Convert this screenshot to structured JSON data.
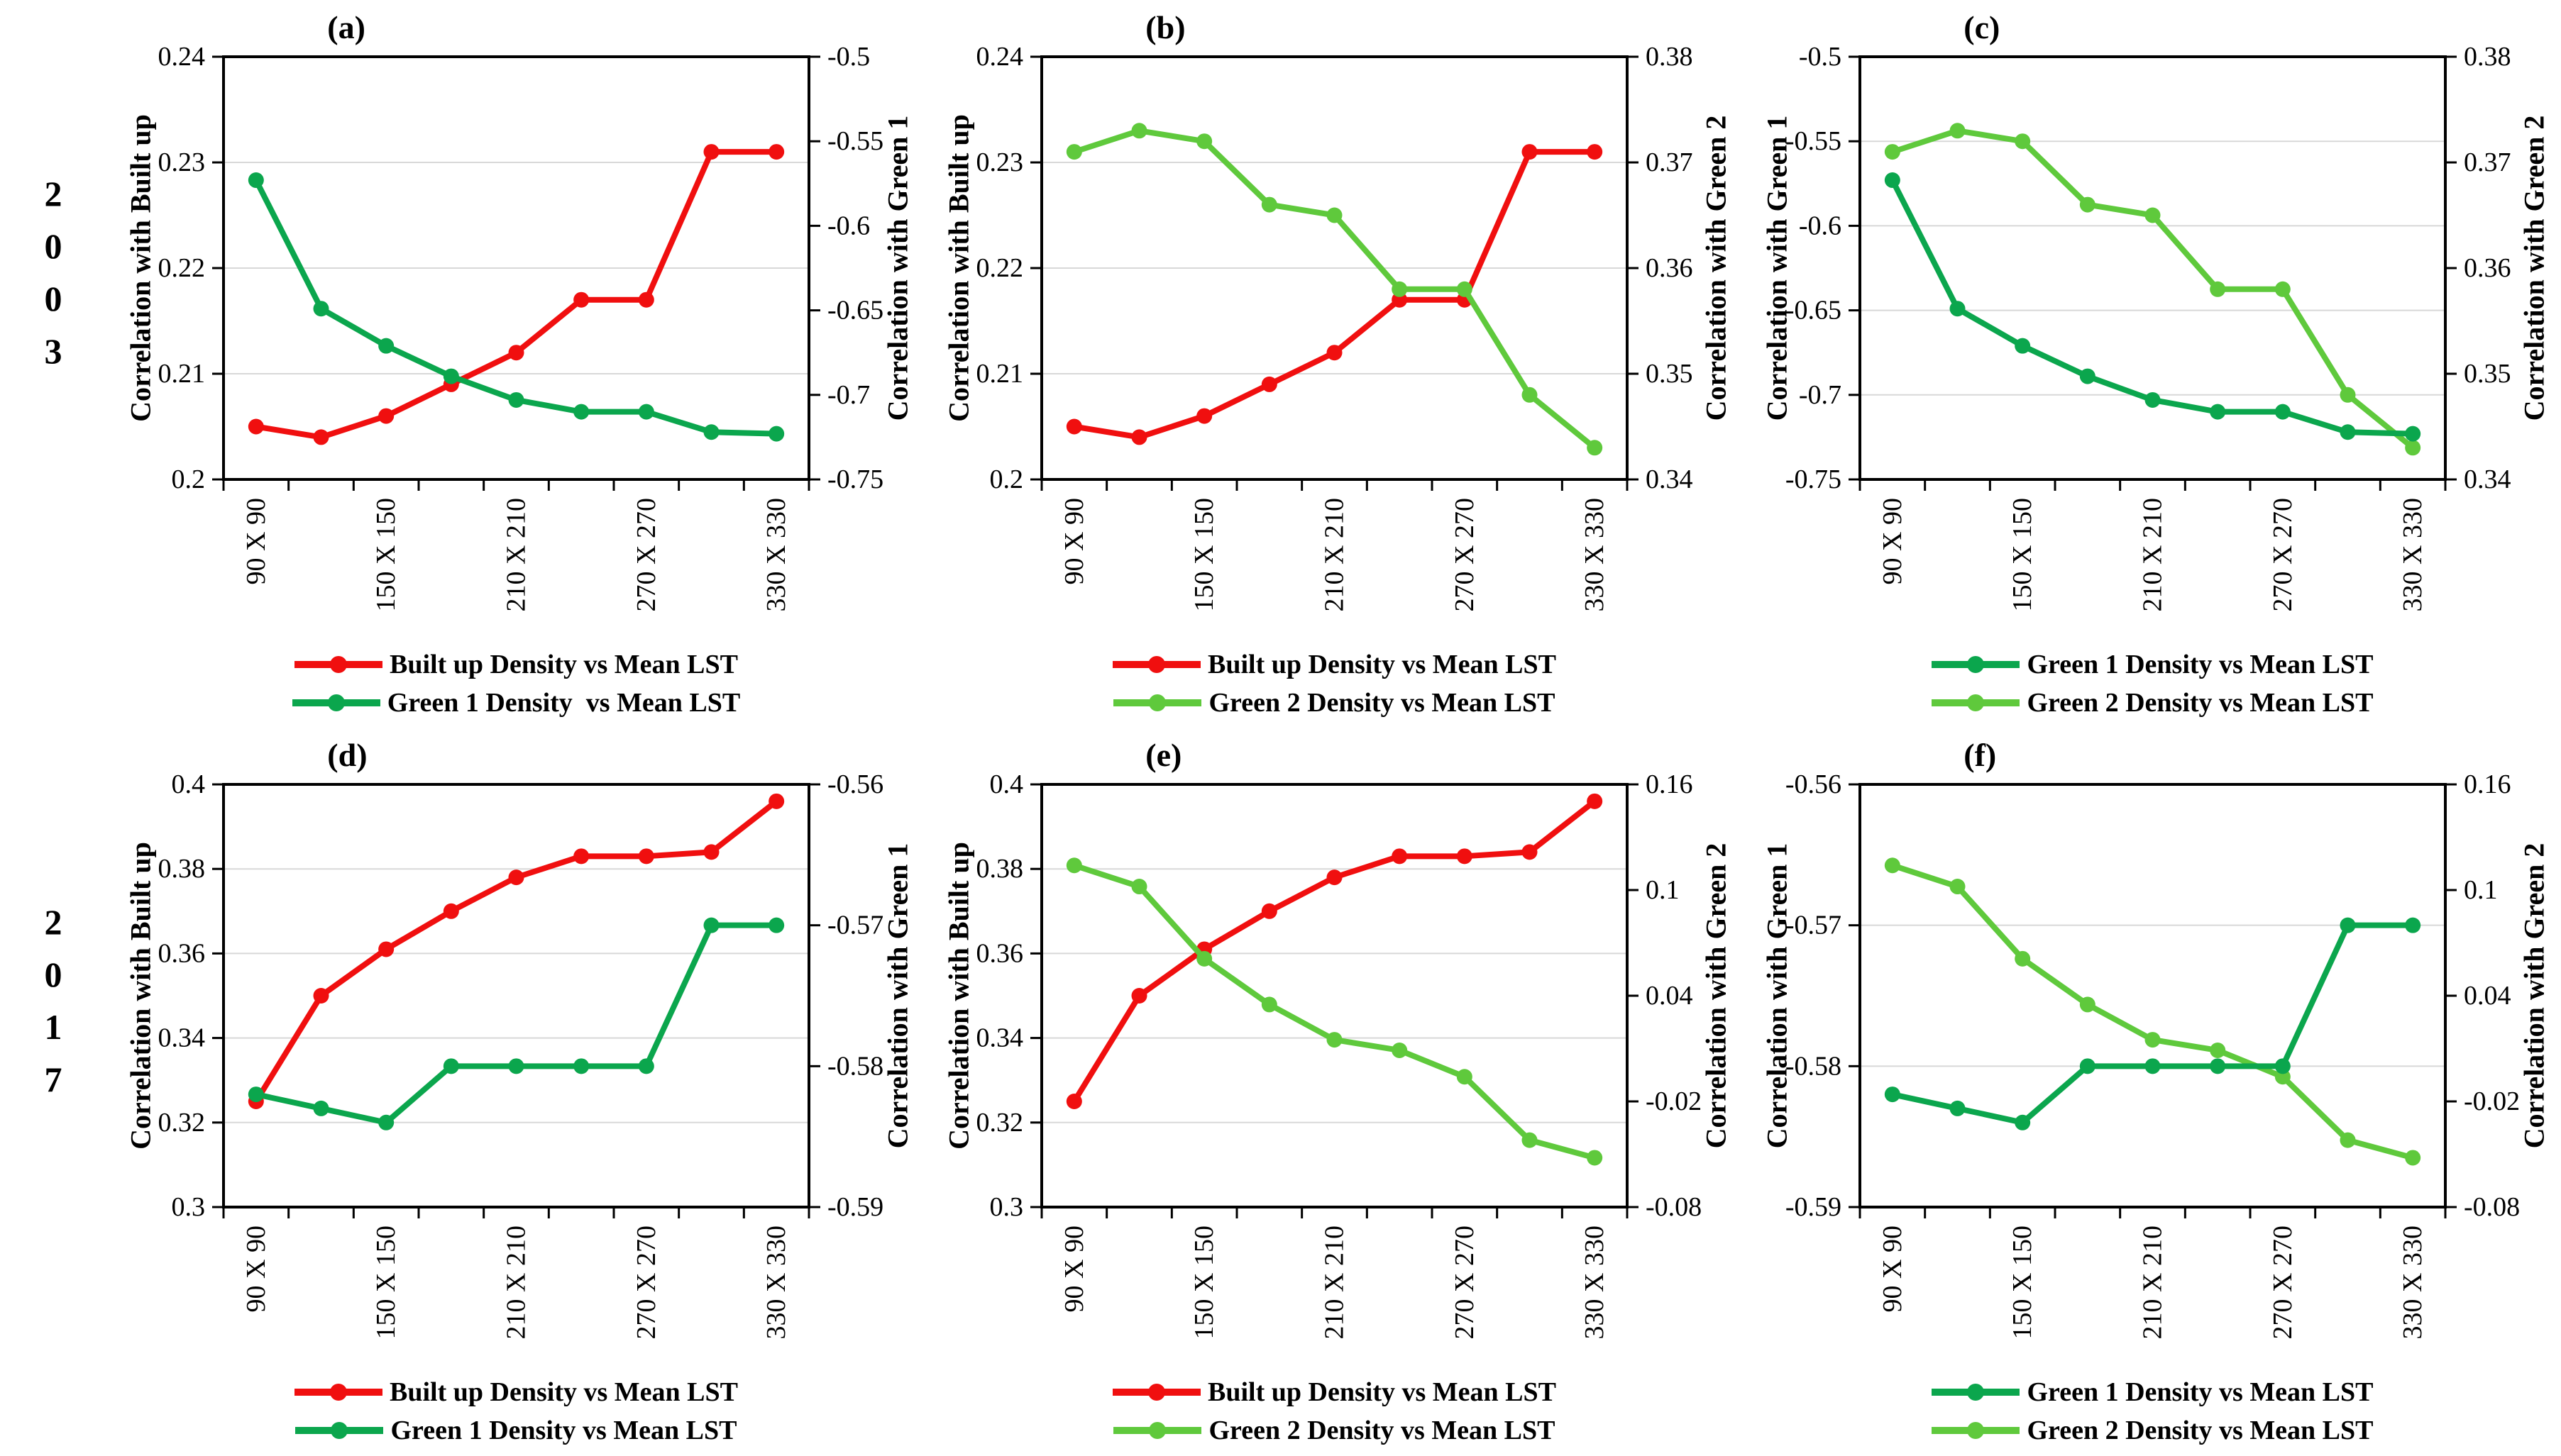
{
  "rows": [
    {
      "year": "2003",
      "panels": [
        "a",
        "b",
        "c"
      ]
    },
    {
      "year": "2017",
      "panels": [
        "d",
        "e",
        "f"
      ]
    }
  ],
  "colors": {
    "red": "#F00F0F",
    "green1": "#0BA64D",
    "green2": "#5FC93C",
    "grid": "#D8D8D8",
    "axis": "#000000"
  },
  "chart_data": [
    {
      "id": "a",
      "title": "(a)",
      "type": "line",
      "grid": true,
      "legend_position": "bottom",
      "x_tick_labels": [
        "90 X 90",
        "",
        "150 X 150",
        "",
        "210 X 210",
        "",
        "270 X 270",
        "",
        "330 X 330"
      ],
      "left_axis": {
        "title": "Correlation with Built up",
        "min": 0.2,
        "max": 0.24,
        "ticks": [
          "0.24",
          "0.23",
          "0.22",
          "0.21",
          "0.2"
        ]
      },
      "right_axis": {
        "title": "Correlation with Green 1",
        "min": -0.75,
        "max": -0.5,
        "ticks": [
          "-0.5",
          "-0.55",
          "-0.6",
          "-0.65",
          "-0.7",
          "-0.75"
        ]
      },
      "series": [
        {
          "name": "Built up Density vs Mean LST",
          "color": "red",
          "axis": "left",
          "values": [
            0.205,
            0.204,
            0.206,
            0.209,
            0.212,
            0.217,
            0.217,
            0.231,
            0.231
          ]
        },
        {
          "name": "Green 1 Density  vs Mean LST",
          "color": "green1",
          "axis": "right",
          "values": [
            -0.573,
            -0.649,
            -0.671,
            -0.689,
            -0.703,
            -0.71,
            -0.71,
            -0.722,
            -0.723
          ]
        }
      ],
      "legend": [
        {
          "color": "red",
          "label": "Built up Density vs Mean LST"
        },
        {
          "color": "green1",
          "label": "Green 1 Density  vs Mean LST"
        }
      ]
    },
    {
      "id": "b",
      "title": "(b)",
      "type": "line",
      "grid": true,
      "legend_position": "bottom",
      "x_tick_labels": [
        "90 X 90",
        "",
        "150 X 150",
        "",
        "210 X 210",
        "",
        "270 X 270",
        "",
        "330 X 330"
      ],
      "left_axis": {
        "title": "Correlation with Built up",
        "min": 0.2,
        "max": 0.24,
        "ticks": [
          "0.24",
          "0.23",
          "0.22",
          "0.21",
          "0.2"
        ]
      },
      "right_axis": {
        "title": "Correlation with Green 2",
        "min": 0.34,
        "max": 0.38,
        "ticks": [
          "0.38",
          "0.37",
          "0.36",
          "0.35",
          "0.34"
        ]
      },
      "series": [
        {
          "name": "Built up Density vs Mean LST",
          "color": "red",
          "axis": "left",
          "values": [
            0.205,
            0.204,
            0.206,
            0.209,
            0.212,
            0.217,
            0.217,
            0.231,
            0.231
          ]
        },
        {
          "name": "Green 2 Density vs Mean LST",
          "color": "green2",
          "axis": "right",
          "values": [
            0.371,
            0.373,
            0.372,
            0.366,
            0.365,
            0.358,
            0.358,
            0.348,
            0.343
          ]
        }
      ],
      "legend": [
        {
          "color": "red",
          "label": "Built up Density vs Mean LST"
        },
        {
          "color": "green2",
          "label": "Green 2 Density vs Mean LST"
        }
      ]
    },
    {
      "id": "c",
      "title": "(c)",
      "type": "line",
      "grid": true,
      "legend_position": "bottom",
      "x_tick_labels": [
        "90 X 90",
        "",
        "150 X 150",
        "",
        "210 X 210",
        "",
        "270 X 270",
        "",
        "330 X 330"
      ],
      "left_axis": {
        "title": "Correlation with Green 1",
        "min": -0.75,
        "max": -0.5,
        "ticks": [
          "-0.5",
          "-0.55",
          "-0.6",
          "-0.65",
          "-0.7",
          "-0.75"
        ]
      },
      "right_axis": {
        "title": "Correlation with Green 2",
        "min": 0.34,
        "max": 0.38,
        "ticks": [
          "0.38",
          "0.37",
          "0.36",
          "0.35",
          "0.34"
        ]
      },
      "series": [
        {
          "name": "Green 2 Density vs Mean LST",
          "color": "green2",
          "axis": "right",
          "values": [
            0.371,
            0.373,
            0.372,
            0.366,
            0.365,
            0.358,
            0.358,
            0.348,
            0.343
          ]
        },
        {
          "name": "Green 1 Density vs Mean LST",
          "color": "green1",
          "axis": "left",
          "values": [
            -0.573,
            -0.649,
            -0.671,
            -0.689,
            -0.703,
            -0.71,
            -0.71,
            -0.722,
            -0.723
          ]
        }
      ],
      "legend": [
        {
          "color": "green1",
          "label": "Green 1 Density vs Mean LST"
        },
        {
          "color": "green2",
          "label": "Green 2 Density vs Mean LST"
        }
      ]
    },
    {
      "id": "d",
      "title": "(d)",
      "type": "line",
      "grid": true,
      "legend_position": "bottom",
      "x_tick_labels": [
        "90 X 90",
        "",
        "150 X 150",
        "",
        "210 X 210",
        "",
        "270 X 270",
        "",
        "330 X 330"
      ],
      "left_axis": {
        "title": "Correlation with Built up",
        "min": 0.3,
        "max": 0.4,
        "ticks": [
          "0.4",
          "0.38",
          "0.36",
          "0.34",
          "0.32",
          "0.3"
        ]
      },
      "right_axis": {
        "title": "Correlation with Green 1",
        "min": -0.59,
        "max": -0.56,
        "ticks": [
          "-0.56",
          "-0.57",
          "-0.58",
          "-0.59"
        ]
      },
      "series": [
        {
          "name": "Built up Density vs Mean LST",
          "color": "red",
          "axis": "left",
          "values": [
            0.325,
            0.35,
            0.361,
            0.37,
            0.378,
            0.383,
            0.383,
            0.384,
            0.396
          ]
        },
        {
          "name": "Green 1 Density vs Mean LST",
          "color": "green1",
          "axis": "right",
          "values": [
            -0.582,
            -0.583,
            -0.584,
            -0.58,
            -0.58,
            -0.58,
            -0.58,
            -0.57,
            -0.57
          ]
        }
      ],
      "legend": [
        {
          "color": "red",
          "label": "Built up Density vs Mean LST"
        },
        {
          "color": "green1",
          "label": "Green 1 Density vs Mean LST"
        }
      ]
    },
    {
      "id": "e",
      "title": "(e)",
      "type": "line",
      "grid": true,
      "legend_position": "bottom",
      "x_tick_labels": [
        "90 X 90",
        "",
        "150 X 150",
        "",
        "210 X 210",
        "",
        "270 X 270",
        "",
        "330 X 330"
      ],
      "left_axis": {
        "title": "Correlation with Built up",
        "min": 0.3,
        "max": 0.4,
        "ticks": [
          "0.4",
          "0.38",
          "0.36",
          "0.34",
          "0.32",
          "0.3"
        ]
      },
      "right_axis": {
        "title": "Correlation with Green 2",
        "min": -0.08,
        "max": 0.16,
        "ticks": [
          "0.16",
          "0.1",
          "0.04",
          "-0.02",
          "-0.08"
        ]
      },
      "series": [
        {
          "name": "Built up Density vs Mean LST",
          "color": "red",
          "axis": "left",
          "values": [
            0.325,
            0.35,
            0.361,
            0.37,
            0.378,
            0.383,
            0.383,
            0.384,
            0.396
          ]
        },
        {
          "name": "Green 2 Density vs Mean LST",
          "color": "green2",
          "axis": "right",
          "values": [
            0.114,
            0.102,
            0.061,
            0.035,
            0.015,
            0.009,
            -0.006,
            -0.042,
            -0.052
          ]
        }
      ],
      "legend": [
        {
          "color": "red",
          "label": "Built up Density vs Mean LST"
        },
        {
          "color": "green2",
          "label": "Green 2 Density vs Mean LST"
        }
      ]
    },
    {
      "id": "f",
      "title": "(f)",
      "type": "line",
      "grid": true,
      "legend_position": "bottom",
      "x_tick_labels": [
        "90 X 90",
        "",
        "150 X 150",
        "",
        "210 X 210",
        "",
        "270 X 270",
        "",
        "330 X 330"
      ],
      "left_axis": {
        "title": "Correlation with Green 1",
        "min": -0.59,
        "max": -0.56,
        "ticks": [
          "-0.56",
          "-0.57",
          "-0.58",
          "-0.59"
        ]
      },
      "right_axis": {
        "title": "Correlation with Green 2",
        "min": -0.08,
        "max": 0.16,
        "ticks": [
          "0.16",
          "0.1",
          "0.04",
          "-0.02",
          "-0.08"
        ]
      },
      "series": [
        {
          "name": "Green 2 Density vs Mean LST",
          "color": "green2",
          "axis": "right",
          "values": [
            0.114,
            0.102,
            0.061,
            0.035,
            0.015,
            0.009,
            -0.006,
            -0.042,
            -0.052
          ]
        },
        {
          "name": "Green 1 Density vs Mean LST",
          "color": "green1",
          "axis": "left",
          "values": [
            -0.582,
            -0.583,
            -0.584,
            -0.58,
            -0.58,
            -0.58,
            -0.58,
            -0.57,
            -0.57
          ]
        }
      ],
      "legend": [
        {
          "color": "green1",
          "label": "Green 1 Density vs Mean LST"
        },
        {
          "color": "green2",
          "label": "Green 2 Density vs Mean LST"
        }
      ]
    }
  ]
}
